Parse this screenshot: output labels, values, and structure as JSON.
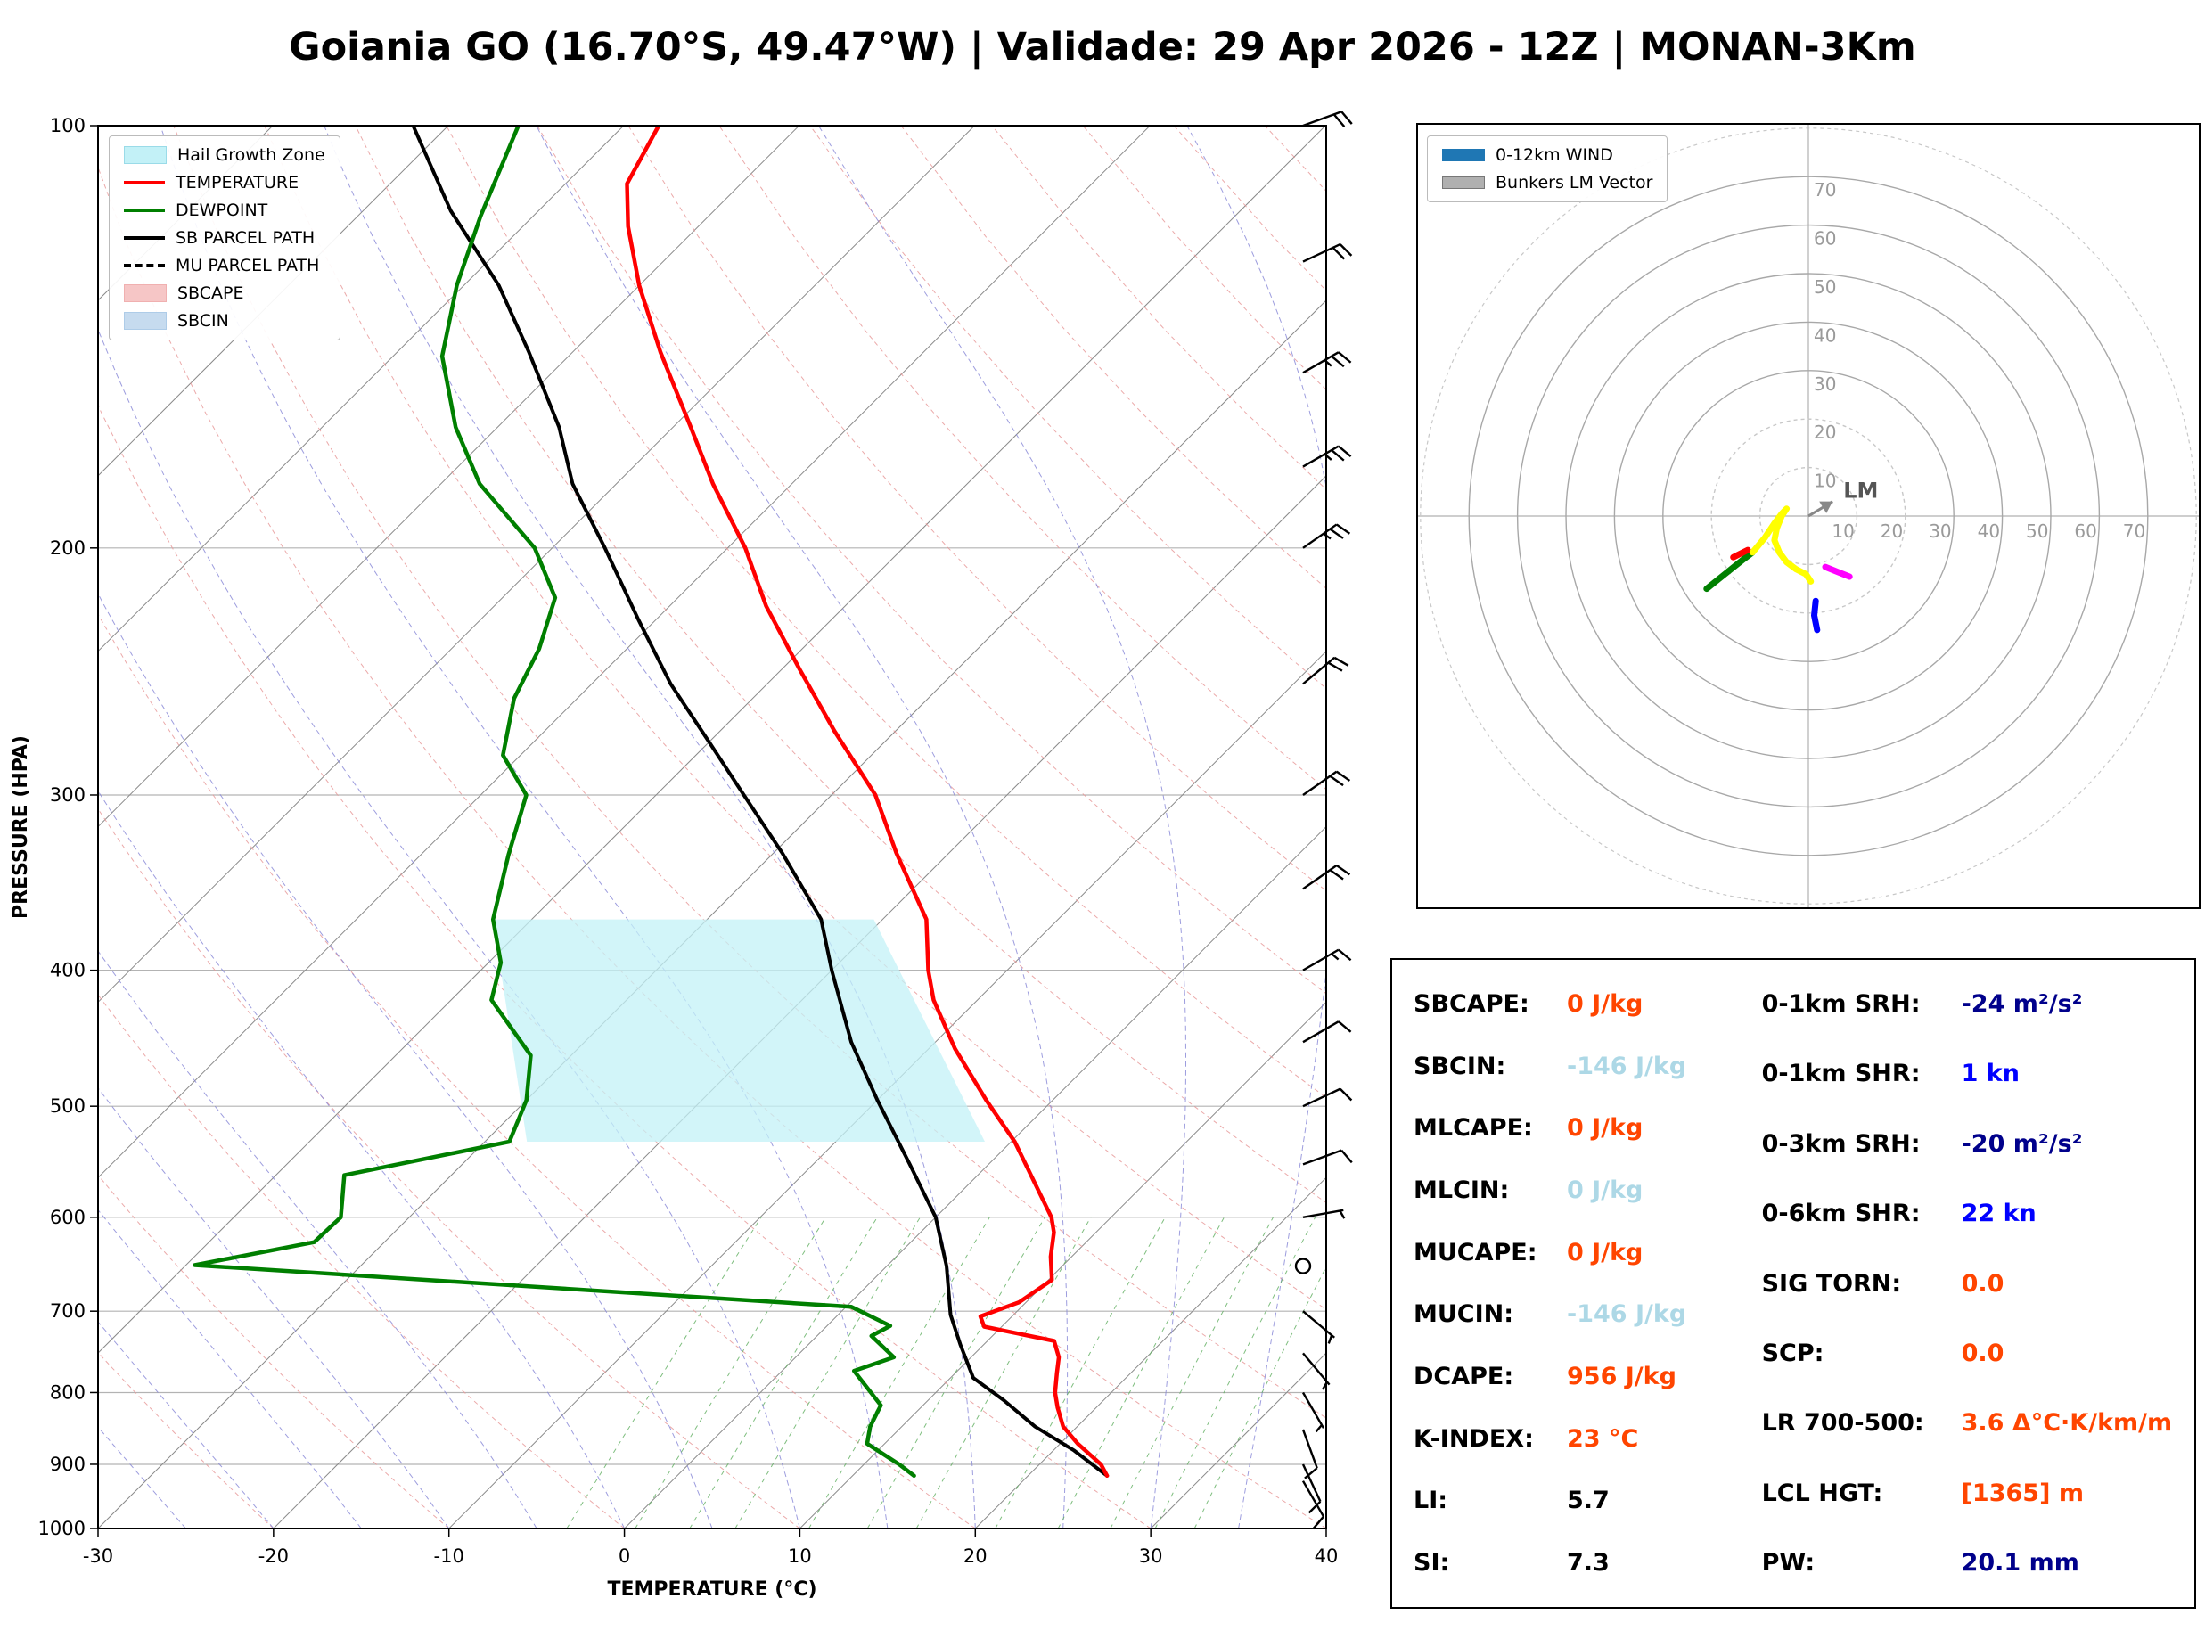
{
  "title": "Goiania GO (16.70°S, 49.47°W) | Validade: 29 Apr 2026 - 12Z | MONAN-3Km",
  "skewt": {
    "xlabel": "TEMPERATURE (°C)",
    "ylabel": "PRESSURE (HPA)",
    "x_ticks": [
      -30,
      -20,
      -10,
      0,
      10,
      20,
      30,
      40
    ],
    "p_ticks": [
      100,
      200,
      300,
      400,
      500,
      600,
      700,
      800,
      900,
      1000
    ],
    "legend": [
      {
        "label": "Hail Growth Zone",
        "type": "patch",
        "color": "#c3f1f7",
        "edge": "#9adbe8"
      },
      {
        "label": "TEMPERATURE",
        "type": "line",
        "color": "#ff0000",
        "dash": false
      },
      {
        "label": "DEWPOINT",
        "type": "line",
        "color": "#007f00",
        "dash": false
      },
      {
        "label": "SB PARCEL PATH",
        "type": "line",
        "color": "#000000",
        "dash": false
      },
      {
        "label": "MU PARCEL PATH",
        "type": "line",
        "color": "#000000",
        "dash": true
      },
      {
        "label": "SBCAPE",
        "type": "patch",
        "color": "#f6c6c6",
        "edge": "#f0b0b0"
      },
      {
        "label": "SBCIN",
        "type": "patch",
        "color": "#c6dbef",
        "edge": "#aecce8"
      }
    ]
  },
  "chart_data": [
    {
      "type": "line",
      "title": "Skew-T Log-P sounding",
      "xlabel": "TEMPERATURE (°C)",
      "ylabel": "PRESSURE (HPA)",
      "xlim": [
        -30,
        40
      ],
      "pressure_range": [
        100,
        1000
      ],
      "series": [
        {
          "name": "TEMPERATURE",
          "color": "#ff0000",
          "points": [
            [
              24.5,
              917
            ],
            [
              23.5,
              900
            ],
            [
              21.0,
              870
            ],
            [
              19.2,
              846
            ],
            [
              17.8,
              820
            ],
            [
              16.8,
              800
            ],
            [
              15.8,
              775
            ],
            [
              15.0,
              755
            ],
            [
              13.8,
              735
            ],
            [
              9.0,
              718
            ],
            [
              8.2,
              706
            ],
            [
              9.6,
              690
            ],
            [
              10.2,
              665
            ],
            [
              8.8,
              640
            ],
            [
              7.6,
              615
            ],
            [
              6.6,
              600
            ],
            [
              3.5,
              565
            ],
            [
              0.2,
              530
            ],
            [
              -3.8,
              495
            ],
            [
              -8.5,
              455
            ],
            [
              -12.5,
              420
            ],
            [
              -14.5,
              400
            ],
            [
              -17.5,
              368
            ],
            [
              -23.0,
              330
            ],
            [
              -27.5,
              300
            ],
            [
              -33.5,
              270
            ],
            [
              -39.0,
              244
            ],
            [
              -44.5,
              220
            ],
            [
              -49.0,
              200
            ],
            [
              -54.5,
              180
            ],
            [
              -59.0,
              164
            ],
            [
              -65.0,
              145
            ],
            [
              -70.0,
              130
            ],
            [
              -74.0,
              118
            ],
            [
              -76.5,
              110
            ],
            [
              -78.0,
              100
            ]
          ]
        },
        {
          "name": "DEWPOINT",
          "color": "#007f00",
          "points": [
            [
              13.5,
              917
            ],
            [
              12.0,
              900
            ],
            [
              9.0,
              870
            ],
            [
              8.2,
              846
            ],
            [
              7.6,
              817
            ],
            [
              4.1,
              772
            ],
            [
              5.6,
              755
            ],
            [
              3.1,
              729
            ],
            [
              3.6,
              717
            ],
            [
              0.3,
              695
            ],
            [
              -39.5,
              649
            ],
            [
              -34.0,
              625
            ],
            [
              -33.9,
              600
            ],
            [
              -36.1,
              560
            ],
            [
              -28.6,
              530
            ],
            [
              -30.0,
              495
            ],
            [
              -32.3,
              460
            ],
            [
              -37.7,
              420
            ],
            [
              -39.3,
              395
            ],
            [
              -42.2,
              368
            ],
            [
              -45.0,
              331
            ],
            [
              -47.4,
              300
            ],
            [
              -51.0,
              281
            ],
            [
              -53.6,
              256
            ],
            [
              -55.0,
              236
            ],
            [
              -57.0,
              217
            ],
            [
              -61.0,
              200
            ],
            [
              -67.8,
              180
            ],
            [
              -72.4,
              164
            ],
            [
              -77.2,
              146
            ],
            [
              -80.4,
              130
            ],
            [
              -83.0,
              116
            ],
            [
              -86.0,
              100
            ]
          ]
        },
        {
          "name": "SB_PARCEL",
          "color": "#000000",
          "points": [
            [
              24.5,
              917
            ],
            [
              21.2,
              880
            ],
            [
              17.6,
              846
            ],
            [
              14.3,
              810
            ],
            [
              11.3,
              781
            ],
            [
              8.7,
              740
            ],
            [
              6.4,
              704
            ],
            [
              3.4,
              650
            ],
            [
              0.0,
              600
            ],
            [
              -4.5,
              550
            ],
            [
              -10.0,
              495
            ],
            [
              -14.8,
              450
            ],
            [
              -20.0,
              400
            ],
            [
              -23.5,
              368
            ],
            [
              -29.5,
              330
            ],
            [
              -35.0,
              300
            ],
            [
              -40.0,
              275
            ],
            [
              -45.5,
              250
            ],
            [
              -51.0,
              225
            ],
            [
              -57.0,
              200
            ],
            [
              -62.5,
              180
            ],
            [
              -66.5,
              164
            ],
            [
              -72.5,
              145
            ],
            [
              -78.0,
              130
            ],
            [
              -85.0,
              115
            ],
            [
              -92.0,
              100
            ]
          ]
        },
        {
          "name": "MU_PARCEL",
          "color": "#000000",
          "dash": true,
          "points": [
            [
              24.5,
              917
            ],
            [
              21.2,
              880
            ],
            [
              17.6,
              846
            ],
            [
              14.3,
              810
            ],
            [
              11.3,
              781
            ],
            [
              8.7,
              740
            ],
            [
              6.4,
              704
            ],
            [
              3.4,
              650
            ],
            [
              0.0,
              600
            ],
            [
              -4.5,
              550
            ],
            [
              -10.0,
              495
            ],
            [
              -14.8,
              450
            ],
            [
              -20.0,
              400
            ],
            [
              -23.5,
              368
            ],
            [
              -29.5,
              330
            ],
            [
              -35.0,
              300
            ],
            [
              -40.0,
              275
            ],
            [
              -45.5,
              250
            ],
            [
              -51.0,
              225
            ],
            [
              -57.0,
              200
            ],
            [
              -62.5,
              180
            ],
            [
              -66.5,
              164
            ],
            [
              -72.5,
              145
            ],
            [
              -78.0,
              130
            ],
            [
              -85.0,
              115
            ],
            [
              -92.0,
              100
            ]
          ]
        }
      ],
      "hail_zone": [
        [
          -27.6,
          530
        ],
        [
          -1.5,
          530
        ],
        [
          -20.5,
          368
        ],
        [
          -42.2,
          368
        ]
      ],
      "wind_barbs": [
        {
          "p": 925,
          "dir": 150,
          "spd": 10
        },
        {
          "p": 900,
          "dir": 155,
          "spd": 10
        },
        {
          "p": 850,
          "dir": 160,
          "spd": 8
        },
        {
          "p": 800,
          "dir": 150,
          "spd": 5
        },
        {
          "p": 750,
          "dir": 140,
          "spd": 5
        },
        {
          "p": 700,
          "dir": 130,
          "spd": 5
        },
        {
          "p": 650,
          "dir": 0,
          "spd": 0
        },
        {
          "p": 600,
          "dir": 80,
          "spd": 5
        },
        {
          "p": 550,
          "dir": 70,
          "spd": 8
        },
        {
          "p": 500,
          "dir": 65,
          "spd": 10
        },
        {
          "p": 450,
          "dir": 60,
          "spd": 12
        },
        {
          "p": 400,
          "dir": 60,
          "spd": 15
        },
        {
          "p": 350,
          "dir": 55,
          "spd": 18
        },
        {
          "p": 300,
          "dir": 55,
          "spd": 20
        },
        {
          "p": 250,
          "dir": 50,
          "spd": 22
        },
        {
          "p": 200,
          "dir": 55,
          "spd": 25
        },
        {
          "p": 175,
          "dir": 60,
          "spd": 25
        },
        {
          "p": 150,
          "dir": 60,
          "spd": 25
        },
        {
          "p": 125,
          "dir": 65,
          "spd": 22
        },
        {
          "p": 100,
          "dir": 70,
          "spd": 20
        }
      ]
    },
    {
      "type": "hodograph",
      "rings": [
        10,
        20,
        30,
        40,
        50,
        60,
        70
      ],
      "units": "kn",
      "segments": [
        {
          "color": "#008000",
          "points": [
            [
              -21,
              -15
            ],
            [
              -18.5,
              -13
            ],
            [
              -16,
              -11
            ],
            [
              -13.5,
              -9
            ],
            [
              -11.5,
              -7.5
            ]
          ]
        },
        {
          "color": "#ff0000",
          "points": [
            [
              -15.5,
              -8.5
            ],
            [
              -12.5,
              -7
            ]
          ]
        },
        {
          "color": "#ffff00",
          "points": [
            [
              -11.5,
              -7.5
            ],
            [
              -9,
              -4.5
            ],
            [
              -7,
              -1.5
            ],
            [
              -5.5,
              0.5
            ],
            [
              -4.5,
              1.5
            ],
            [
              -5.5,
              0
            ],
            [
              -6.5,
              -2.5
            ],
            [
              -7,
              -5
            ],
            [
              -6,
              -7.5
            ],
            [
              -4.5,
              -9.5
            ],
            [
              -2.5,
              -11
            ],
            [
              -0.5,
              -12
            ],
            [
              0.5,
              -13.5
            ]
          ]
        },
        {
          "color": "#ff00ff",
          "points": [
            [
              3.5,
              -10.5
            ],
            [
              6,
              -11.5
            ],
            [
              8.5,
              -12.5
            ]
          ]
        },
        {
          "color": "#0000ff",
          "points": [
            [
              1.5,
              -17.5
            ],
            [
              1.2,
              -20.5
            ],
            [
              1.8,
              -23.5
            ]
          ]
        }
      ],
      "lm_vector": {
        "u": 5,
        "v": 3,
        "label": "LM"
      }
    }
  ],
  "hodograph_legend": [
    {
      "label": "0-12km WIND",
      "color": "#1f77b4"
    },
    {
      "label": "Bunkers LM Vector",
      "color": "#b0b0b0",
      "edge": "#777777"
    }
  ],
  "stats": {
    "left": [
      {
        "label": "SBCAPE:",
        "value": "0 J/kg",
        "color": "#ff4500"
      },
      {
        "label": "SBCIN:",
        "value": "-146 J/kg",
        "color": "#add8e6"
      },
      {
        "label": "MLCAPE:",
        "value": "0 J/kg",
        "color": "#ff4500"
      },
      {
        "label": "MLCIN:",
        "value": "0 J/kg",
        "color": "#add8e6"
      },
      {
        "label": "MUCAPE:",
        "value": "0 J/kg",
        "color": "#ff4500"
      },
      {
        "label": "MUCIN:",
        "value": "-146 J/kg",
        "color": "#add8e6"
      },
      {
        "label": "DCAPE:",
        "value": "956 J/kg",
        "color": "#ff4500"
      },
      {
        "label": "K-INDEX:",
        "value": "23 °C",
        "color": "#ff4500"
      },
      {
        "label": "LI:",
        "value": "5.7",
        "color": "#000000"
      },
      {
        "label": "SI:",
        "value": "7.3",
        "color": "#000000"
      }
    ],
    "right": [
      {
        "label": "0-1km SRH:",
        "value": "-24 m²/s²",
        "color": "#00008b"
      },
      {
        "label": "0-1km SHR:",
        "value": "1 kn",
        "color": "#0000ff"
      },
      {
        "label": "0-3km SRH:",
        "value": "-20 m²/s²",
        "color": "#00008b"
      },
      {
        "label": "0-6km SHR:",
        "value": "22 kn",
        "color": "#0000ff"
      },
      {
        "label": "SIG TORN:",
        "value": "0.0",
        "color": "#ff4500"
      },
      {
        "label": "SCP:",
        "value": "0.0",
        "color": "#ff4500"
      },
      {
        "label": "LR 700-500:",
        "value": "3.6 Δ°C·K/km/m",
        "color": "#ff4500"
      },
      {
        "label": "LCL HGT:",
        "value": "[1365] m",
        "color": "#ff4500"
      },
      {
        "label": "PW:",
        "value": "20.1 mm",
        "color": "#00008b"
      }
    ]
  }
}
